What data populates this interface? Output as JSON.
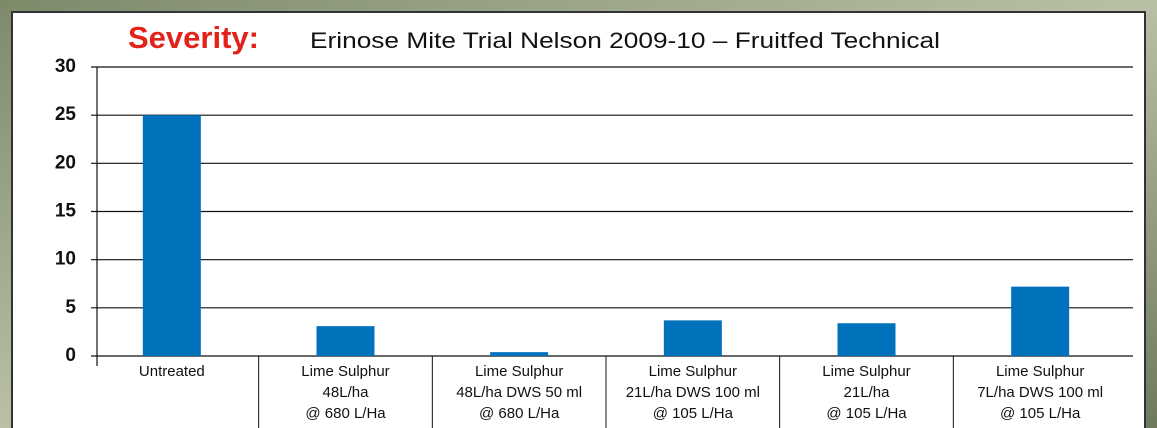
{
  "chart_data": {
    "type": "bar",
    "title_label": "Severity:",
    "title": "Erinose Mite Trial Nelson 2009-10 –  Fruitfed Technical",
    "categories": [
      [
        "Untreated"
      ],
      [
        "Lime Sulphur",
        "48L/ha",
        "@ 680 L/Ha"
      ],
      [
        "Lime Sulphur",
        "48L/ha DWS 50 ml",
        "@ 680 L/Ha"
      ],
      [
        "Lime Sulphur",
        "21L/ha DWS 100 ml",
        "@ 105 L/Ha"
      ],
      [
        "Lime Sulphur",
        "21L/ha",
        "@ 105 L/Ha"
      ],
      [
        "Lime Sulphur",
        "7L/ha DWS 100 ml",
        "@ 105 L/Ha"
      ]
    ],
    "values": [
      25,
      3.1,
      0.4,
      3.7,
      3.4,
      7.2
    ],
    "color": "#0072bc",
    "ylim": [
      0,
      30
    ],
    "yticks": [
      0,
      5,
      10,
      15,
      20,
      25,
      30
    ],
    "grid": true
  }
}
